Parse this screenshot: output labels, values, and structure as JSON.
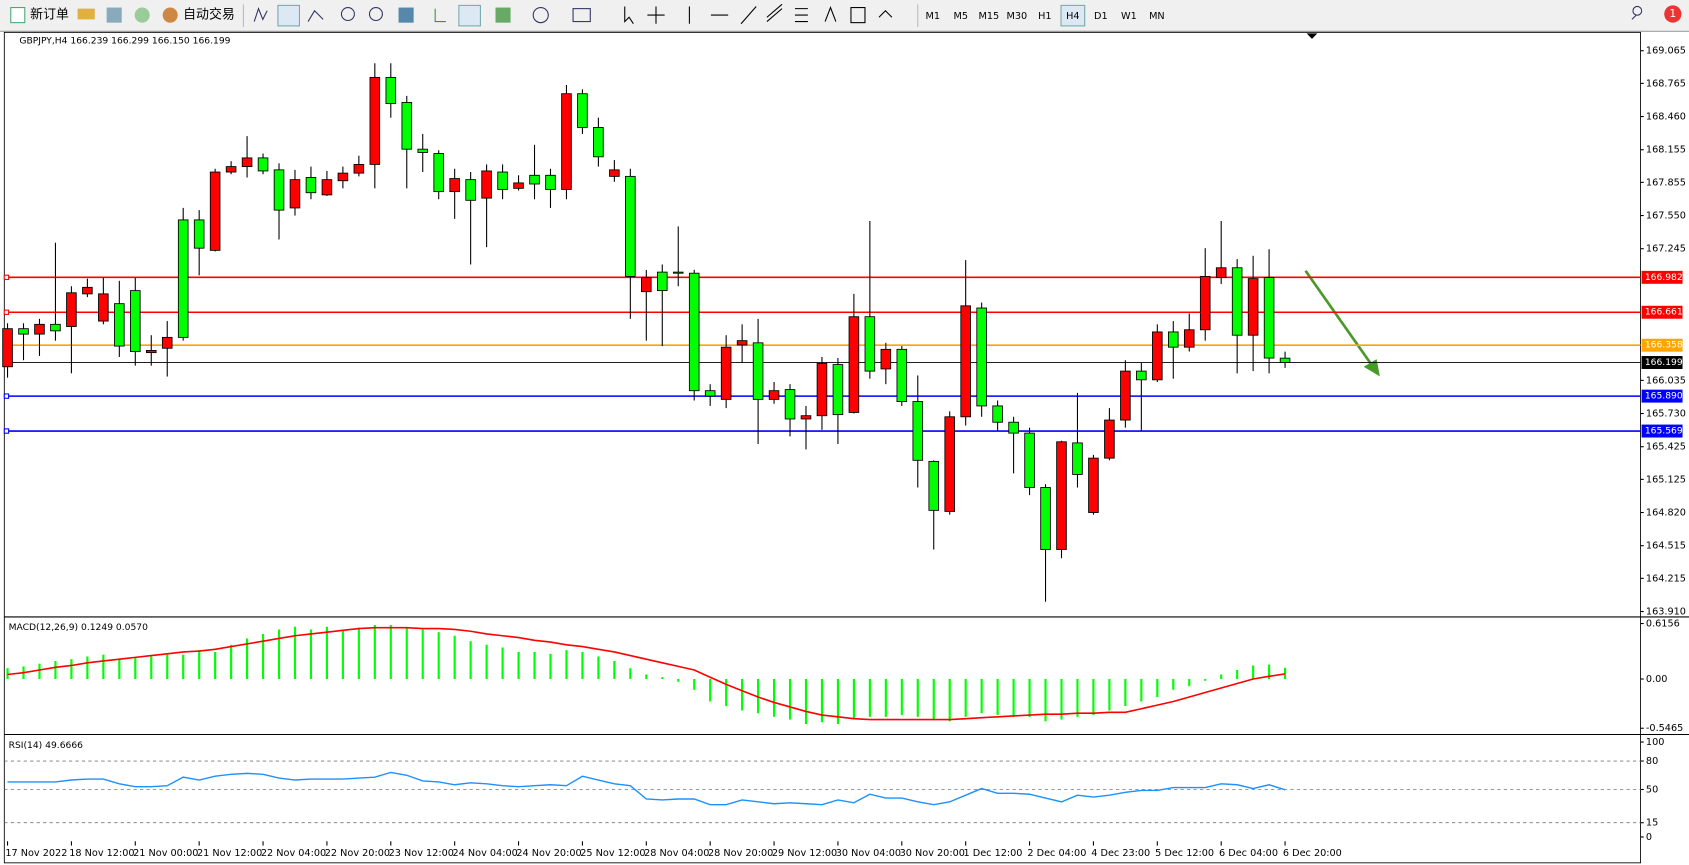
{
  "toolbar": {
    "new_order": "新订单",
    "auto_trading": "自动交易",
    "timeframes": [
      "M1",
      "M5",
      "M15",
      "M30",
      "H1",
      "H4",
      "D1",
      "W1",
      "MN"
    ],
    "selected_timeframe": 5,
    "notification": "1"
  },
  "chart_data": [
    {
      "type": "candlestick",
      "title": "GBPJPY,H4  166.239 166.299 166.150 166.199",
      "categories": [
        "17 Nov 2022",
        null,
        null,
        null,
        "18 Nov 12:00",
        null,
        null,
        null,
        "21 Nov 00:00",
        null,
        null,
        null,
        "21 Nov 12:00",
        null,
        null,
        null,
        "22 Nov 04:00",
        null,
        null,
        null,
        "22 Nov 20:00",
        null,
        null,
        null,
        "23 Nov 12:00",
        null,
        null,
        null,
        "24 Nov 04:00",
        null,
        null,
        null,
        "24 Nov 20:00",
        null,
        null,
        null,
        "25 Nov 12:00",
        null,
        null,
        null,
        "28 Nov 04:00",
        null,
        null,
        null,
        "28 Nov 20:00",
        null,
        null,
        null,
        "29 Nov 12:00",
        null,
        null,
        null,
        "30 Nov 04:00",
        null,
        null,
        null,
        "30 Nov 20:00",
        null,
        null,
        null,
        "1 Dec 12:00",
        null,
        null,
        null,
        "2 Dec 04:00",
        null,
        null,
        null,
        "4 Dec 23:00",
        null,
        null,
        null,
        "5 Dec 12:00",
        null,
        null,
        null,
        "6 Dec 04:00",
        null,
        null,
        null,
        "6 Dec 20:00"
      ],
      "open": [
        166.16,
        166.51,
        166.46,
        166.55,
        166.53,
        166.83,
        166.58,
        166.74,
        166.86,
        166.29,
        166.33,
        167.51,
        167.51,
        167.23,
        167.95,
        168.0,
        168.08,
        167.97,
        167.62,
        167.9,
        167.74,
        167.87,
        167.94,
        168.02,
        168.82,
        168.59,
        168.16,
        168.12,
        167.77,
        167.88,
        167.71,
        167.95,
        167.8,
        167.92,
        167.92,
        167.79,
        168.67,
        168.36,
        167.91,
        167.91,
        166.85,
        167.03,
        167.03,
        167.02,
        165.94,
        165.86,
        166.36,
        166.38,
        165.86,
        165.95,
        165.68,
        165.71,
        166.18,
        165.74,
        166.62,
        166.14,
        166.32,
        165.84,
        165.29,
        164.83,
        165.7,
        166.7,
        165.8,
        165.65,
        165.55,
        165.05,
        164.48,
        165.46,
        164.82,
        165.32,
        165.67,
        166.12,
        166.04,
        166.48,
        166.34,
        166.5,
        166.98,
        167.07,
        166.45,
        166.98,
        166.239
      ],
      "high": [
        166.56,
        166.56,
        166.6,
        167.3,
        166.9,
        166.97,
        166.98,
        166.95,
        166.98,
        166.45,
        166.58,
        167.62,
        167.6,
        167.98,
        168.05,
        168.28,
        168.12,
        168.03,
        167.97,
        168.0,
        167.96,
        168.0,
        168.1,
        168.95,
        168.95,
        168.65,
        168.3,
        168.15,
        167.98,
        167.95,
        168.02,
        168.02,
        167.92,
        168.2,
        167.98,
        168.75,
        168.71,
        168.45,
        168.06,
        167.98,
        167.05,
        167.1,
        167.45,
        167.05,
        166.0,
        166.45,
        166.55,
        166.6,
        166.02,
        166.0,
        165.8,
        166.25,
        166.24,
        166.83,
        167.5,
        166.38,
        166.35,
        166.08,
        165.3,
        165.75,
        167.14,
        166.75,
        165.85,
        165.7,
        165.6,
        165.08,
        165.48,
        165.92,
        165.35,
        165.78,
        166.22,
        166.2,
        166.55,
        166.58,
        166.65,
        167.25,
        167.5,
        167.15,
        167.18,
        167.24,
        166.299
      ],
      "low": [
        166.06,
        166.22,
        166.26,
        166.4,
        166.1,
        166.8,
        166.55,
        166.25,
        166.17,
        166.17,
        166.07,
        166.4,
        167.0,
        167.22,
        167.93,
        167.9,
        167.93,
        167.33,
        167.55,
        167.7,
        167.73,
        167.8,
        167.91,
        167.8,
        168.45,
        167.8,
        167.95,
        167.7,
        167.52,
        167.1,
        167.26,
        167.7,
        167.78,
        167.7,
        167.62,
        167.7,
        168.3,
        168.0,
        167.86,
        166.6,
        166.4,
        166.35,
        166.9,
        165.85,
        165.8,
        165.78,
        166.2,
        165.45,
        165.82,
        165.52,
        165.4,
        165.58,
        165.45,
        165.73,
        166.05,
        166.0,
        165.8,
        165.05,
        164.48,
        164.8,
        165.62,
        165.7,
        165.57,
        165.18,
        164.98,
        164.0,
        164.4,
        165.05,
        164.8,
        165.3,
        165.6,
        165.57,
        166.02,
        166.05,
        166.3,
        166.4,
        166.92,
        166.1,
        166.12,
        166.1,
        166.15
      ],
      "close": [
        166.51,
        166.46,
        166.55,
        166.49,
        166.84,
        166.89,
        166.83,
        166.35,
        166.3,
        166.31,
        166.43,
        166.43,
        167.25,
        167.95,
        168.0,
        168.08,
        167.96,
        167.6,
        167.88,
        167.76,
        167.88,
        167.94,
        168.02,
        168.82,
        168.58,
        168.16,
        168.13,
        167.77,
        167.89,
        167.69,
        167.96,
        167.79,
        167.85,
        167.84,
        167.79,
        168.67,
        168.36,
        168.09,
        167.97,
        166.99,
        166.98,
        166.86,
        167.02,
        165.94,
        165.89,
        166.34,
        166.4,
        165.86,
        165.94,
        165.68,
        165.71,
        166.19,
        165.72,
        166.62,
        166.12,
        166.32,
        165.84,
        165.3,
        164.84,
        165.7,
        166.72,
        165.8,
        165.65,
        165.55,
        165.05,
        164.48,
        165.47,
        165.17,
        165.32,
        165.67,
        166.12,
        166.04,
        166.48,
        166.34,
        166.5,
        166.99,
        167.07,
        166.45,
        166.97,
        166.24,
        166.199
      ],
      "up_color": "#ff0000",
      "down_color": "#00ff00",
      "ylim": [
        163.88,
        169.234
      ],
      "yticks": [
        169.065,
        168.765,
        {
          "value": 168.46,
          "label": "168.460"
        },
        168.155,
        167.855,
        {
          "value": 167.55,
          "label": "167.550"
        },
        167.245,
        166.035,
        {
          "value": 165.73,
          "label": "165.730"
        },
        165.425,
        165.125,
        {
          "value": 164.82,
          "label": "164.820"
        },
        164.515,
        164.215,
        {
          "value": 163.91,
          "label": "163.910"
        }
      ],
      "levels": [
        {
          "value": 166.982,
          "color": "#ff0000"
        },
        {
          "value": 166.661,
          "color": "#ff0000"
        },
        {
          "value": 166.358,
          "color": "#ffa500"
        },
        {
          "value": 165.89,
          "label": "165.890",
          "color": "#0000ff"
        },
        {
          "value": 165.569,
          "color": "#0000ff"
        }
      ],
      "last_price": 166.199
    },
    {
      "type": "macd",
      "title": "MACD(12,26,9) 0.1249 0.0570",
      "values": [
        0.12,
        0.14,
        0.17,
        0.2,
        0.22,
        0.25,
        0.27,
        0.22,
        0.24,
        0.25,
        0.27,
        0.27,
        0.32,
        0.3,
        0.38,
        0.45,
        0.5,
        0.55,
        0.58,
        0.55,
        0.58,
        0.55,
        0.57,
        0.6,
        0.6,
        0.57,
        0.55,
        0.52,
        0.48,
        0.42,
        0.38,
        0.35,
        0.3,
        0.3,
        0.28,
        0.32,
        0.3,
        0.25,
        0.2,
        0.12,
        0.05,
        0.02,
        -0.03,
        -0.12,
        -0.25,
        -0.3,
        -0.35,
        -0.38,
        -0.42,
        -0.45,
        -0.5,
        -0.48,
        -0.5,
        -0.45,
        -0.42,
        -0.42,
        -0.4,
        -0.42,
        -0.45,
        -0.47,
        -0.42,
        -0.38,
        -0.4,
        -0.42,
        -0.42,
        -0.47,
        -0.45,
        -0.42,
        -0.4,
        -0.35,
        -0.3,
        -0.25,
        -0.2,
        -0.12,
        -0.08,
        -0.02,
        0.05,
        0.1,
        0.15,
        0.16,
        0.1249
      ],
      "color": "#00ff00",
      "signal": {
        "color": "#ff0000",
        "values": [
          0.05,
          0.07,
          0.1,
          0.13,
          0.15,
          0.18,
          0.2,
          0.22,
          0.24,
          0.26,
          0.28,
          0.3,
          0.31,
          0.33,
          0.36,
          0.39,
          0.42,
          0.45,
          0.48,
          0.5,
          0.52,
          0.54,
          0.56,
          0.57,
          0.57,
          0.57,
          0.56,
          0.56,
          0.55,
          0.53,
          0.5,
          0.48,
          0.46,
          0.43,
          0.41,
          0.38,
          0.36,
          0.33,
          0.3,
          0.26,
          0.22,
          0.18,
          0.14,
          0.1,
          0.02,
          -0.06,
          -0.13,
          -0.2,
          -0.26,
          -0.31,
          -0.36,
          -0.4,
          -0.42,
          -0.44,
          -0.45,
          -0.45,
          -0.45,
          -0.45,
          -0.45,
          -0.45,
          -0.44,
          -0.43,
          -0.42,
          -0.41,
          -0.4,
          -0.39,
          -0.39,
          -0.38,
          -0.38,
          -0.37,
          -0.37,
          -0.33,
          -0.29,
          -0.25,
          -0.2,
          -0.15,
          -0.1,
          -0.05,
          0,
          0.03,
          0.057
        ]
      },
      "ylim": [
        -0.58,
        0.665
      ],
      "yticks": [
        0.6156,
        {
          "value": 0,
          "label": "0.00"
        },
        -0.5465
      ]
    },
    {
      "type": "rsi",
      "title": "RSI(14) 49.6666",
      "values": [
        58,
        58,
        58,
        58,
        60,
        61,
        61,
        56,
        53,
        53,
        54,
        63,
        60,
        64,
        66,
        67,
        66,
        62,
        60,
        61,
        61,
        61,
        62,
        63,
        68,
        65,
        59,
        58,
        55,
        57,
        56,
        54,
        53,
        54,
        55,
        54,
        64,
        60,
        56,
        54,
        40,
        39,
        40,
        40,
        34,
        34,
        39,
        37,
        35,
        36,
        35,
        34,
        39,
        36,
        45,
        41,
        41,
        37,
        34,
        37,
        44,
        51,
        46,
        46,
        45,
        41,
        37,
        44,
        42,
        44,
        47,
        49,
        49,
        52,
        52,
        52,
        56,
        55,
        51,
        55,
        49.6666
      ],
      "color": "#1e90ff",
      "ylim": [
        0,
        100
      ],
      "yticks": [
        100,
        80,
        50,
        15,
        0
      ]
    }
  ]
}
